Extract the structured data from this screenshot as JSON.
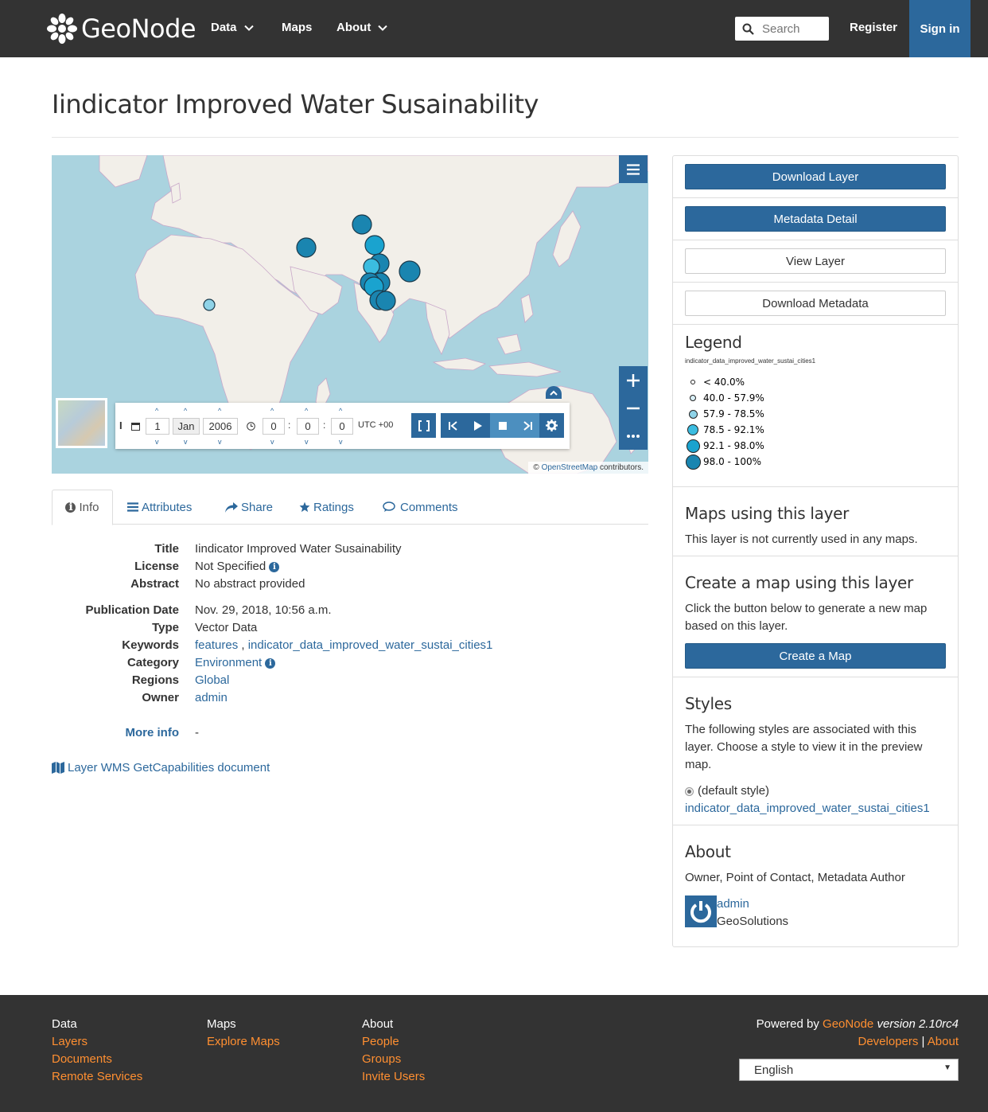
{
  "header": {
    "brand": "GeoNode",
    "nav": [
      {
        "label": "Data",
        "dropdown": true
      },
      {
        "label": "Maps",
        "dropdown": false
      },
      {
        "label": "About",
        "dropdown": true
      }
    ],
    "search_placeholder": "Search",
    "register": "Register",
    "signin": "Sign in"
  },
  "page_title": "Iindicator Improved Water Susainability",
  "map": {
    "attribution_prefix": "©",
    "attribution_link": "OpenStreetMap",
    "attribution_suffix": "contributors.",
    "timeline": {
      "day": "1",
      "month": "Jan",
      "year": "2006",
      "hour": "0",
      "minute": "0",
      "second": "0",
      "timezone": "UTC +00"
    }
  },
  "tabs": [
    {
      "label": "Info",
      "icon": "info-circle-icon",
      "active": true
    },
    {
      "label": "Attributes",
      "icon": "list-icon"
    },
    {
      "label": "Share",
      "icon": "share-icon"
    },
    {
      "label": "Ratings",
      "icon": "star-icon"
    },
    {
      "label": "Comments",
      "icon": "comment-icon"
    }
  ],
  "info": {
    "title_k": "Title",
    "title_v": "Iindicator Improved Water Susainability",
    "license_k": "License",
    "license_v": "Not Specified",
    "abstract_k": "Abstract",
    "abstract_v": "No abstract provided",
    "pubdate_k": "Publication Date",
    "pubdate_v": "Nov. 29, 2018, 10:56 a.m.",
    "type_k": "Type",
    "type_v": "Vector Data",
    "keywords_k": "Keywords",
    "keyword1": "features",
    "keyword_sep": ",",
    "keyword2": "indicator_data_improved_water_sustai_cities1",
    "category_k": "Category",
    "category_v": "Environment",
    "regions_k": "Regions",
    "regions_v": "Global",
    "owner_k": "Owner",
    "owner_v": "admin",
    "moreinfo_k": "More info",
    "moreinfo_v": "-",
    "wms_link": "Layer WMS GetCapabilities document"
  },
  "sidebar": {
    "download_layer": "Download Layer",
    "metadata_detail": "Metadata Detail",
    "view_layer": "View Layer",
    "download_metadata": "Download Metadata",
    "legend_title": "Legend",
    "legend_layer": "indicator_data_improved_water_sustai_cities1",
    "legend": [
      {
        "label": "< 40.0%",
        "color": "#ffffff"
      },
      {
        "label": "40.0 - 57.9%",
        "color": "#d9f0f7"
      },
      {
        "label": "57.9 - 78.5%",
        "color": "#8fd3e8"
      },
      {
        "label": "78.5 - 92.1%",
        "color": "#3bbce0"
      },
      {
        "label": "92.1 - 98.0%",
        "color": "#1aa3cf"
      },
      {
        "label": "98.0 - 100%",
        "color": "#1a85b0"
      }
    ],
    "maps_title": "Maps using this layer",
    "maps_text": "This layer is not currently used in any maps.",
    "create_title": "Create a map using this layer",
    "create_text": "Click the button below to generate a new map based on this layer.",
    "create_btn": "Create a Map",
    "styles_title": "Styles",
    "styles_text": "The following styles are associated with this layer. Choose a style to view it in the preview map.",
    "default_style": "(default style)",
    "style_link": "indicator_data_improved_water_sustai_cities1",
    "about_title": "About",
    "about_roles": "Owner, Point of Contact, Metadata Author",
    "about_user": "admin",
    "about_org": "GeoSolutions"
  },
  "footer": {
    "col1": {
      "heading": "Data",
      "links": [
        "Layers",
        "Documents",
        "Remote Services"
      ]
    },
    "col2": {
      "heading": "Maps",
      "links": [
        "Explore Maps"
      ]
    },
    "col3": {
      "heading": "About",
      "links": [
        "People",
        "Groups",
        "Invite Users"
      ]
    },
    "powered_prefix": "Powered by",
    "powered_link": "GeoNode",
    "version": "version 2.10rc4",
    "developers": "Developers",
    "sep": "|",
    "about": "About",
    "language": "English"
  },
  "colors": {
    "brand_blue": "#2c689c",
    "header_bg": "#333333",
    "footer_link": "#ff8f31"
  }
}
